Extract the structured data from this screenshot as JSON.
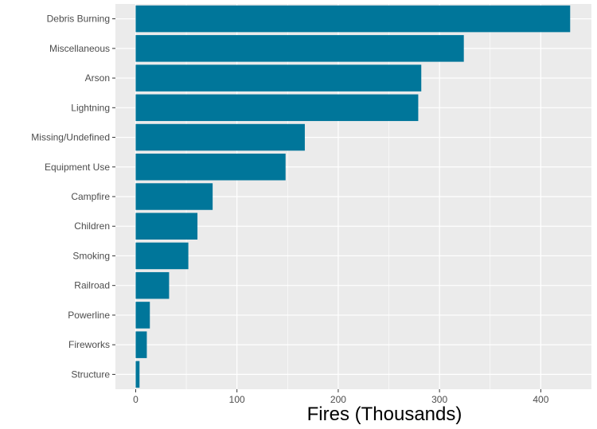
{
  "chart_data": {
    "type": "bar",
    "orientation": "horizontal",
    "categories": [
      "Debris Burning",
      "Miscellaneous",
      "Arson",
      "Lightning",
      "Missing/Undefined",
      "Equipment Use",
      "Campfire",
      "Children",
      "Smoking",
      "Railroad",
      "Powerline",
      "Fireworks",
      "Structure"
    ],
    "values": [
      429,
      324,
      282,
      279,
      167,
      148,
      76,
      61,
      52,
      33,
      14,
      11,
      3.8
    ],
    "title": "",
    "xlabel": "Fires (Thousands)",
    "ylabel": "",
    "xlim": [
      -20,
      450
    ],
    "xticks": [
      "0",
      "100",
      "200",
      "300",
      "400"
    ],
    "grid": true,
    "legend": "none",
    "colors": {
      "bar": "#00769A",
      "panel_background": "#EBEBEB",
      "grid": "#FFFFFF"
    }
  }
}
